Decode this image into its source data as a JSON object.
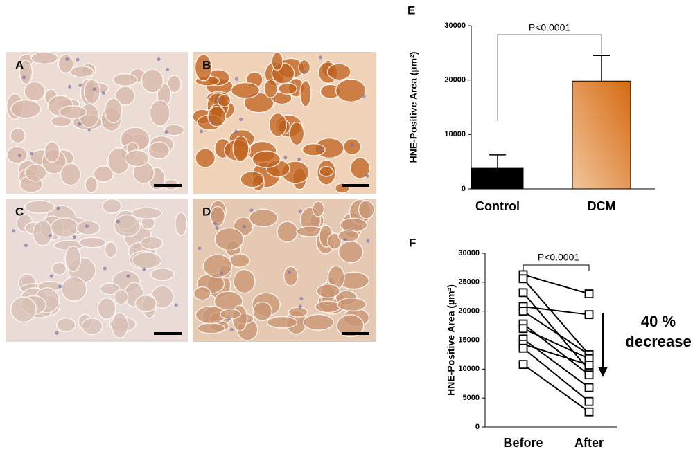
{
  "panels": [
    "A",
    "B",
    "C",
    "D"
  ],
  "chart_data": [
    {
      "type": "bar",
      "panel": "E",
      "ylabel": "HNE-Positive Area (µm²)",
      "categories": [
        "Control",
        "DCM"
      ],
      "values": [
        3800,
        19800
      ],
      "errors": [
        2450,
        4700
      ],
      "colors": [
        "#000000",
        "#e0883a"
      ],
      "ylim": [
        0,
        30000
      ],
      "yticks": [
        0,
        10000,
        20000,
        30000
      ],
      "annotation": "P<0.0001"
    },
    {
      "type": "line",
      "panel": "F",
      "ylabel": "HNE-Positive Area (µm²)",
      "categories": [
        "Before",
        "After"
      ],
      "color": "#000000",
      "series": [
        {
          "values": [
            26300,
            23000
          ]
        },
        {
          "values": [
            25600,
            12500
          ]
        },
        {
          "values": [
            23200,
            9800
          ]
        },
        {
          "values": [
            20800,
            19400
          ]
        },
        {
          "values": [
            20000,
            12500
          ]
        },
        {
          "values": [
            17800,
            9000
          ]
        },
        {
          "values": [
            17000,
            11800
          ]
        },
        {
          "values": [
            15200,
            6800
          ]
        },
        {
          "values": [
            14300,
            10700
          ]
        },
        {
          "values": [
            13600,
            4400
          ]
        },
        {
          "values": [
            10800,
            2600
          ]
        }
      ],
      "ylim": [
        0,
        30000
      ],
      "yticks": [
        0,
        5000,
        10000,
        15000,
        20000,
        25000,
        30000
      ],
      "annotation": "P<0.0001",
      "note": [
        "40 %",
        "decrease"
      ]
    }
  ]
}
